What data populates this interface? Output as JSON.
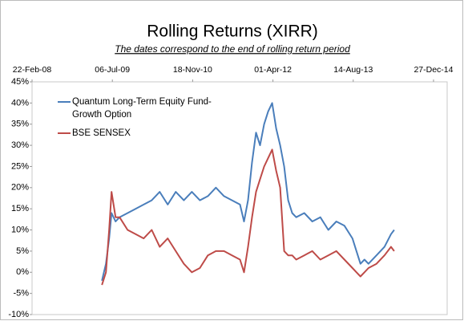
{
  "chart_data": {
    "type": "line",
    "title": "Rolling Returns (XIRR)",
    "subtitle": "The dates correspond to the end of rolling return period",
    "x": [
      39935,
      39960,
      39980,
      39995,
      40020,
      40045,
      40095,
      40145,
      40195,
      40245,
      40295,
      40345,
      40395,
      40445,
      40495,
      40545,
      40595,
      40645,
      40695,
      40745,
      40795,
      40820,
      40845,
      40870,
      40895,
      40920,
      40945,
      40970,
      40995,
      41020,
      41045,
      41070,
      41095,
      41120,
      41145,
      41195,
      41245,
      41295,
      41345,
      41395,
      41445,
      41495,
      41520,
      41545,
      41570,
      41595,
      41645,
      41695,
      41735,
      41755
    ],
    "series": [
      {
        "name": "Quantum Long-Term Equity Fund-Growth Option",
        "color": "#4a7ebb",
        "values": [
          -2,
          2,
          8,
          14,
          12,
          13,
          14,
          15,
          16,
          17,
          19,
          16,
          19,
          17,
          19,
          17,
          18,
          20,
          18,
          17,
          16,
          12,
          17,
          26,
          33,
          30,
          35,
          38,
          40,
          34,
          30,
          25,
          17,
          14,
          13,
          14,
          12,
          13,
          10,
          12,
          11,
          8,
          5,
          2,
          3,
          2,
          4,
          6,
          9,
          10
        ]
      },
      {
        "name": "BSE SENSEX",
        "color": "#be4b48",
        "values": [
          -3,
          0,
          10,
          19,
          13,
          13,
          10,
          9,
          8,
          10,
          6,
          8,
          5,
          2,
          0,
          1,
          4,
          5,
          5,
          4,
          3,
          0,
          6,
          13,
          19,
          22,
          25,
          27,
          29,
          24,
          20,
          5,
          4,
          4,
          3,
          4,
          5,
          3,
          4,
          5,
          3,
          1,
          0,
          -1,
          0,
          1,
          2,
          4,
          6,
          5
        ]
      }
    ],
    "xlim": [
      39500,
      42085
    ],
    "xticks": [
      {
        "value": 39500,
        "label": "22-Feb-08"
      },
      {
        "value": 40000,
        "label": "06-Jul-09"
      },
      {
        "value": 40500,
        "label": "18-Nov-10"
      },
      {
        "value": 41000,
        "label": "01-Apr-12"
      },
      {
        "value": 41500,
        "label": "14-Aug-13"
      },
      {
        "value": 42000,
        "label": "27-Dec-14"
      }
    ],
    "ylim": [
      -10,
      45
    ],
    "yticks": [
      {
        "value": -10,
        "label": "-10%"
      },
      {
        "value": -5,
        "label": "-5%"
      },
      {
        "value": 0,
        "label": "0%"
      },
      {
        "value": 5,
        "label": "5%"
      },
      {
        "value": 10,
        "label": "10%"
      },
      {
        "value": 15,
        "label": "15%"
      },
      {
        "value": 20,
        "label": "20%"
      },
      {
        "value": 25,
        "label": "25%"
      },
      {
        "value": 30,
        "label": "30%"
      },
      {
        "value": 35,
        "label": "35%"
      },
      {
        "value": 40,
        "label": "40%"
      },
      {
        "value": 45,
        "label": "45%"
      }
    ],
    "grid": false
  }
}
